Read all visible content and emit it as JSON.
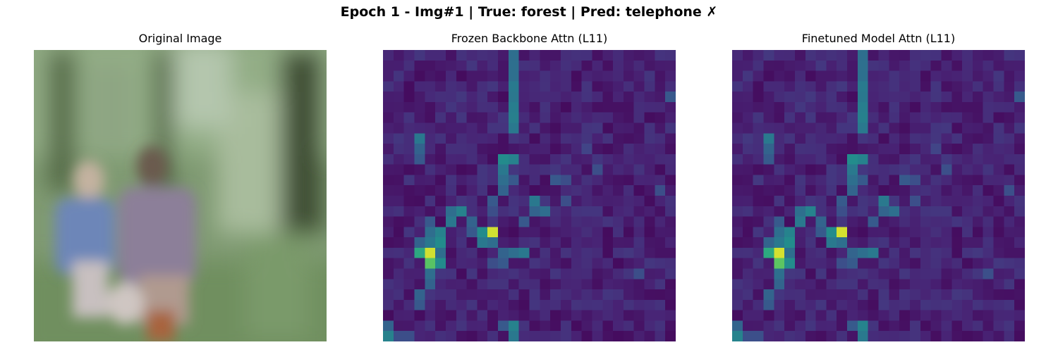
{
  "figure": {
    "title": "Epoch 1 - Img#1 | True: forest | Pred: telephone ✗"
  },
  "panels": [
    {
      "title": "Original Image"
    },
    {
      "title": "Frozen Backbone Attn (L11)"
    },
    {
      "title": "Finetuned Model Attn (L11)"
    }
  ],
  "colormap": "viridis",
  "attention_grid_size": 28
}
